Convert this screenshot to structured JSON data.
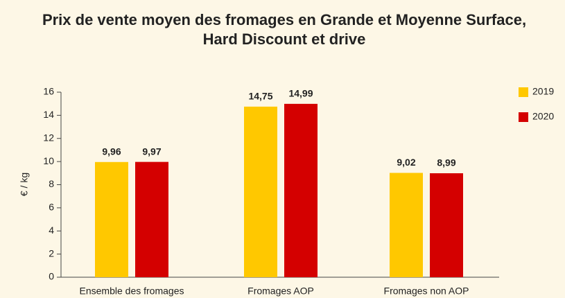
{
  "chart_data": {
    "type": "bar",
    "title": [
      "Prix de vente moyen des fromages en Grande et Moyenne Surface,",
      "Hard Discount et drive"
    ],
    "y_label": "€ / kg",
    "categories": [
      "Ensemble des fromages",
      "Fromages AOP",
      "Fromages non AOP"
    ],
    "series": [
      {
        "name": "2019",
        "color": "#ffc800",
        "values": [
          9.96,
          14.75,
          9.02
        ],
        "value_labels": [
          "9,96",
          "14,75",
          "9,02"
        ]
      },
      {
        "name": "2020",
        "color": "#d40000",
        "values": [
          9.97,
          14.99,
          8.99
        ],
        "value_labels": [
          "9,97",
          "14,99",
          "8,99"
        ]
      }
    ],
    "ylim": [
      0,
      16
    ],
    "yticks": [
      0,
      2,
      4,
      6,
      8,
      10,
      12,
      14,
      16
    ],
    "grid": false,
    "legend": "right"
  }
}
